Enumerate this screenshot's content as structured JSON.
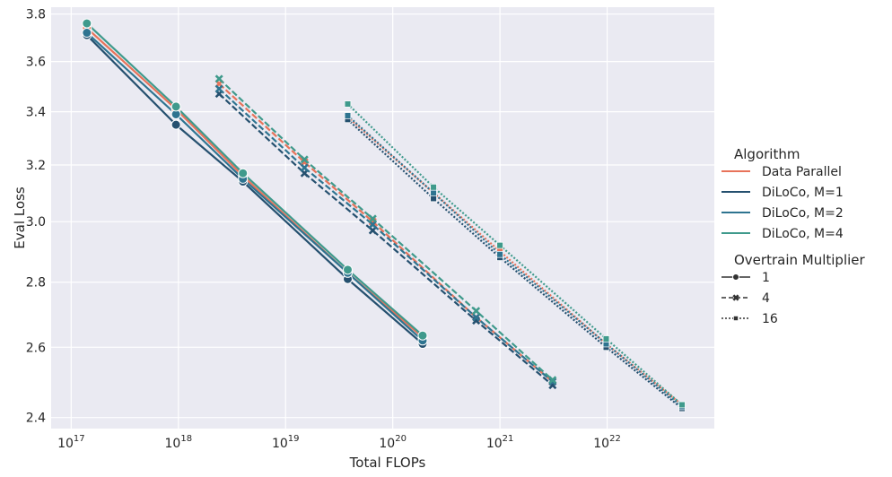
{
  "chart_data": {
    "type": "line",
    "xlabel": "Total FLOPs",
    "ylabel": "Eval Loss",
    "xscale": "log",
    "yscale": "log",
    "xlim": [
      6.5e+16,
      1e+23
    ],
    "ylim": [
      2.37,
      3.83
    ],
    "x_ticks": [
      {
        "value": 1e+17,
        "base": "10",
        "exp": "17"
      },
      {
        "value": 1e+18,
        "base": "10",
        "exp": "18"
      },
      {
        "value": 1e+19,
        "base": "10",
        "exp": "19"
      },
      {
        "value": 1e+20,
        "base": "10",
        "exp": "20"
      },
      {
        "value": 1e+21,
        "base": "10",
        "exp": "21"
      },
      {
        "value": 1e+22,
        "base": "10",
        "exp": "22"
      }
    ],
    "y_ticks": [
      {
        "value": 2.4,
        "label": "2.4"
      },
      {
        "value": 2.6,
        "label": "2.6"
      },
      {
        "value": 2.8,
        "label": "2.8"
      },
      {
        "value": 3.0,
        "label": "3.0"
      },
      {
        "value": 3.2,
        "label": "3.2"
      },
      {
        "value": 3.4,
        "label": "3.4"
      },
      {
        "value": 3.6,
        "label": "3.6"
      },
      {
        "value": 3.8,
        "label": "3.8"
      }
    ],
    "grid": true,
    "background": "#eaeaf2",
    "legend_position": "right",
    "legend": {
      "hue_title": "Algorithm",
      "hue_entries": [
        {
          "label": "Data Parallel",
          "color": "#e8735a"
        },
        {
          "label": "DiLoCo, M=1",
          "color": "#25506f"
        },
        {
          "label": "DiLoCo, M=2",
          "color": "#2e7490"
        },
        {
          "label": "DiLoCo, M=4",
          "color": "#3f9a8c"
        }
      ],
      "style_title": "Overtrain Multiplier",
      "style_entries": [
        {
          "label": "1",
          "dash": "solid",
          "marker": "circle"
        },
        {
          "label": "4",
          "dash": "dashed",
          "marker": "x"
        },
        {
          "label": "16",
          "dash": "dotted",
          "marker": "square"
        }
      ]
    },
    "series": [
      {
        "algorithm": "Data Parallel",
        "overtrain": "1",
        "color": "#e8735a",
        "dash": "solid",
        "marker": "circle",
        "x": [
          1.4e+17,
          9.5e+17,
          4e+18,
          3.8e+19,
          1.9e+20
        ],
        "y": [
          3.74,
          3.41,
          3.16,
          2.83,
          2.63
        ]
      },
      {
        "algorithm": "DiLoCo, M=1",
        "overtrain": "1",
        "color": "#25506f",
        "dash": "solid",
        "marker": "circle",
        "x": [
          1.4e+17,
          9.5e+17,
          4e+18,
          3.8e+19,
          1.9e+20
        ],
        "y": [
          3.71,
          3.35,
          3.14,
          2.81,
          2.61
        ]
      },
      {
        "algorithm": "DiLoCo, M=2",
        "overtrain": "1",
        "color": "#2e7490",
        "dash": "solid",
        "marker": "circle",
        "x": [
          1.4e+17,
          9.5e+17,
          4e+18,
          3.8e+19,
          1.9e+20
        ],
        "y": [
          3.72,
          3.39,
          3.15,
          2.83,
          2.62
        ]
      },
      {
        "algorithm": "DiLoCo, M=4",
        "overtrain": "1",
        "color": "#3f9a8c",
        "dash": "solid",
        "marker": "circle",
        "x": [
          1.4e+17,
          9.5e+17,
          4e+18,
          3.8e+19,
          1.9e+20
        ],
        "y": [
          3.76,
          3.42,
          3.17,
          2.84,
          2.635
        ]
      },
      {
        "algorithm": "Data Parallel",
        "overtrain": "4",
        "color": "#e8735a",
        "dash": "dashed",
        "marker": "x",
        "x": [
          2.4e+18,
          1.5e+19,
          6.5e+19,
          6e+20,
          3.1e+21
        ],
        "y": [
          3.51,
          3.21,
          3.0,
          2.69,
          2.5
        ]
      },
      {
        "algorithm": "DiLoCo, M=1",
        "overtrain": "4",
        "color": "#25506f",
        "dash": "dashed",
        "marker": "x",
        "x": [
          2.4e+18,
          1.5e+19,
          6.5e+19,
          6e+20,
          3.1e+21
        ],
        "y": [
          3.47,
          3.17,
          2.97,
          2.68,
          2.49
        ]
      },
      {
        "algorithm": "DiLoCo, M=2",
        "overtrain": "4",
        "color": "#2e7490",
        "dash": "dashed",
        "marker": "x",
        "x": [
          2.4e+18,
          1.5e+19,
          6.5e+19,
          6e+20,
          3.1e+21
        ],
        "y": [
          3.49,
          3.19,
          2.99,
          2.69,
          2.5
        ]
      },
      {
        "algorithm": "DiLoCo, M=4",
        "overtrain": "4",
        "color": "#3f9a8c",
        "dash": "dashed",
        "marker": "x",
        "x": [
          2.4e+18,
          1.5e+19,
          6.5e+19,
          6e+20,
          3.1e+21
        ],
        "y": [
          3.53,
          3.22,
          3.01,
          2.71,
          2.505
        ]
      },
      {
        "algorithm": "Data Parallel",
        "overtrain": "16",
        "color": "#e8735a",
        "dash": "dotted",
        "marker": "square",
        "x": [
          3.8e+19,
          2.4e+20,
          1e+21,
          9.8e+21,
          5e+22
        ],
        "y": [
          3.38,
          3.1,
          2.9,
          2.61,
          2.435
        ]
      },
      {
        "algorithm": "DiLoCo, M=1",
        "overtrain": "16",
        "color": "#25506f",
        "dash": "dotted",
        "marker": "square",
        "x": [
          3.8e+19,
          2.4e+20,
          1e+21,
          9.8e+21,
          5e+22
        ],
        "y": [
          3.37,
          3.08,
          2.88,
          2.6,
          2.425
        ]
      },
      {
        "algorithm": "DiLoCo, M=2",
        "overtrain": "16",
        "color": "#2e7490",
        "dash": "dotted",
        "marker": "square",
        "x": [
          3.8e+19,
          2.4e+20,
          1e+21,
          9.8e+21,
          5e+22
        ],
        "y": [
          3.385,
          3.1,
          2.89,
          2.61,
          2.43
        ]
      },
      {
        "algorithm": "DiLoCo, M=4",
        "overtrain": "16",
        "color": "#3f9a8c",
        "dash": "dotted",
        "marker": "square",
        "x": [
          3.8e+19,
          2.4e+20,
          1e+21,
          9.8e+21,
          5e+22
        ],
        "y": [
          3.43,
          3.12,
          2.92,
          2.625,
          2.435
        ]
      }
    ]
  }
}
